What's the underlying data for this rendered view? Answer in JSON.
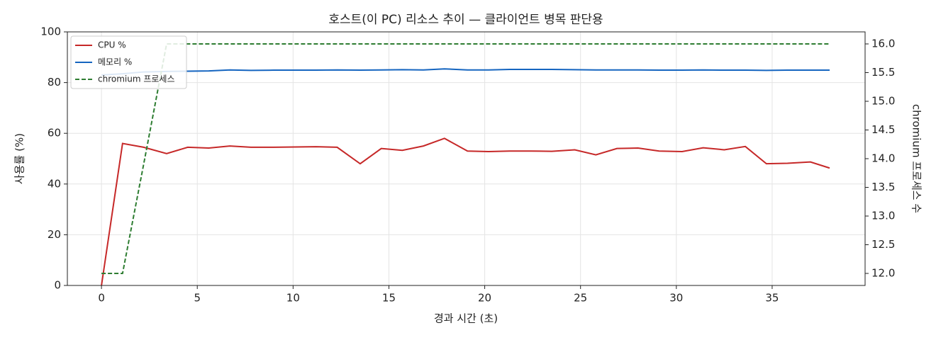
{
  "chart_data": {
    "type": "line",
    "title": "호스트(이 PC) 리소스 추이 — 클라이언트 병목 판단용",
    "xlabel": "경과 시간 (초)",
    "ylabel": "사용률 (%)",
    "y2label": "chromium 프로세스 수",
    "x": [
      0,
      1.1,
      2.2,
      3.4,
      4.5,
      5.6,
      6.7,
      7.8,
      9.0,
      10.1,
      11.2,
      12.3,
      13.5,
      14.6,
      15.7,
      16.8,
      17.9,
      19.1,
      20.2,
      21.3,
      22.4,
      23.5,
      24.7,
      25.8,
      26.9,
      28.0,
      29.1,
      30.3,
      31.4,
      32.5,
      33.6,
      34.7,
      35.8,
      37.0,
      38.0
    ],
    "series": [
      {
        "name": "CPU %",
        "color": "#c62828",
        "axis": "y",
        "dashed": false,
        "values": [
          0,
          56,
          54.5,
          52,
          54.5,
          54.2,
          55,
          54.5,
          54.5,
          54.6,
          54.7,
          54.5,
          48,
          54,
          53.3,
          55,
          58,
          53,
          52.8,
          53,
          53,
          52.9,
          53.5,
          51.5,
          54,
          54.2,
          53,
          52.8,
          54.3,
          53.5,
          54.8,
          48,
          48.2,
          48.7,
          46.3
        ]
      },
      {
        "name": "메모리 %",
        "color": "#1565c0",
        "axis": "y",
        "dashed": false,
        "values": [
          83,
          83.5,
          84.2,
          84.4,
          84.5,
          84.6,
          85,
          84.8,
          84.9,
          84.9,
          84.9,
          85,
          84.9,
          85,
          85.1,
          85,
          85.4,
          85,
          85,
          85.2,
          85.2,
          85.2,
          85.1,
          85,
          85,
          85,
          84.9,
          84.9,
          85,
          84.9,
          84.9,
          84.8,
          84.9,
          84.9,
          84.9
        ]
      },
      {
        "name": "chromium 프로세스",
        "color": "#2e7d32",
        "axis": "y2",
        "dashed": true,
        "values": [
          12,
          12,
          13.9,
          16,
          16,
          16,
          16,
          16,
          16,
          16,
          16,
          16,
          16,
          16,
          16,
          16,
          16,
          16,
          16,
          16,
          16,
          16,
          16,
          16,
          16,
          16,
          16,
          16,
          16,
          16,
          16,
          16,
          16,
          16,
          16
        ]
      }
    ],
    "xlim": [
      -1.78,
      39.85
    ],
    "xticks": [
      0,
      5,
      10,
      15,
      20,
      25,
      30,
      35
    ],
    "ylim": [
      0,
      100
    ],
    "yticks": [
      0,
      20,
      40,
      60,
      80,
      100
    ],
    "y2lim": [
      11.79,
      16.21
    ],
    "y2ticks": [
      {
        "value": 12,
        "label": "12.0"
      },
      {
        "value": 12.5,
        "label": "12.5"
      },
      {
        "value": 13,
        "label": "13.0"
      },
      {
        "value": 13.5,
        "label": "13.5"
      },
      {
        "value": 14,
        "label": "14.0"
      },
      {
        "value": 14.5,
        "label": "14.5"
      },
      {
        "value": 15,
        "label": "15.0"
      },
      {
        "value": 15.5,
        "label": "15.5"
      },
      {
        "value": 16,
        "label": "16.0"
      }
    ],
    "grid": true,
    "legend": "upper-left"
  }
}
